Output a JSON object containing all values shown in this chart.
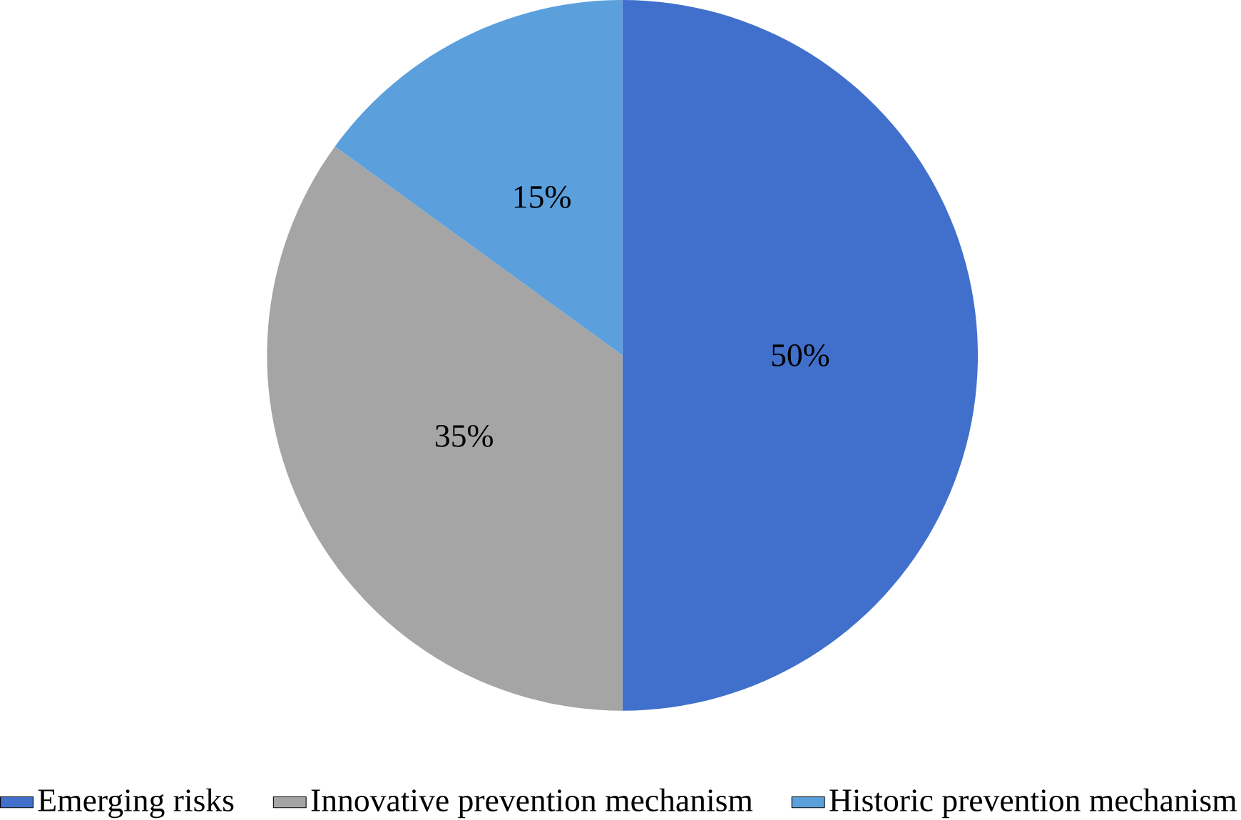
{
  "chart_data": {
    "type": "pie",
    "categories": [
      "Emerging risks",
      "Innovative prevention mechanism",
      "Historic prevention mechanism"
    ],
    "values": [
      50,
      35,
      15
    ],
    "value_labels": [
      "50%",
      "35%",
      "15%"
    ],
    "colors": [
      "#4170cc",
      "#a5a5a5",
      "#5b9fdc"
    ],
    "legend": "bottom"
  }
}
